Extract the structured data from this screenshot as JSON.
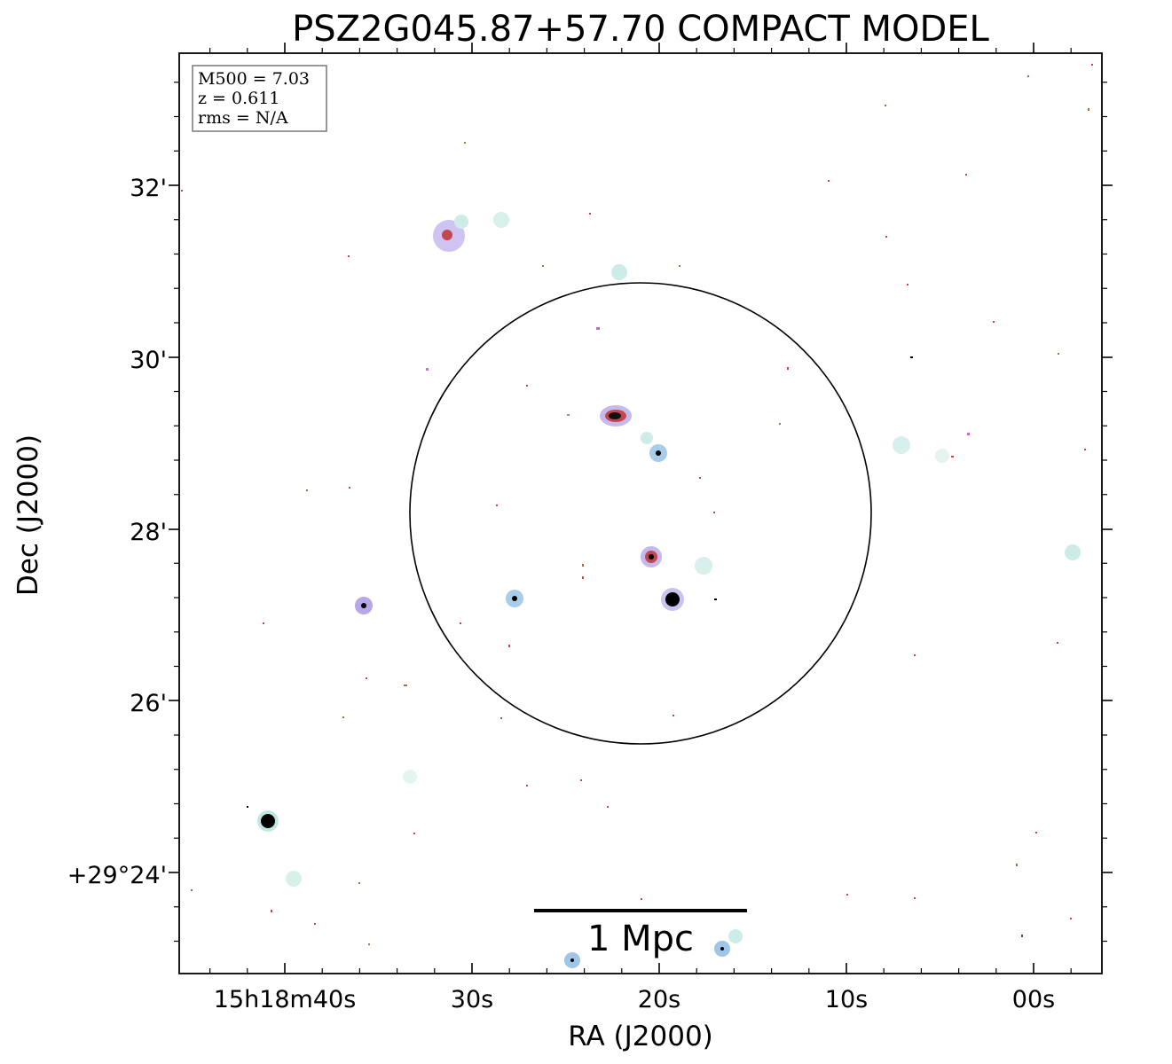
{
  "figure": {
    "title": "PSZ2G045.87+57.70 COMPACT MODEL",
    "xlabel": "RA (J2000)",
    "ylabel": "Dec (J2000)",
    "ra_ticks": [
      "15h18m40s",
      "30s",
      "20s",
      "10s",
      "00s"
    ],
    "dec_ticks": [
      "32'",
      "30'",
      "28'",
      "26'",
      "+29°24'"
    ],
    "info": {
      "m500": "M500 = 7.03",
      "z": "z = 0.611",
      "rms": "rms = N/A"
    },
    "scale_bar_label": "1 Mpc",
    "colors": {
      "background": "#ffffff",
      "frame": "#000000",
      "halo_cyan": "#bfe8e4",
      "halo_purple": "#b7a6e8",
      "halo_blue": "#9fc6e6",
      "core_red": "#c2464e",
      "core_black": "#000000"
    }
  }
}
